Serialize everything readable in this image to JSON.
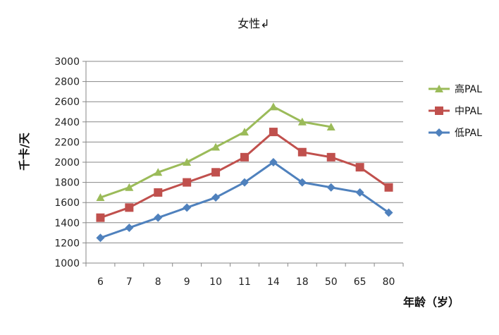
{
  "chart_data": {
    "type": "line",
    "title": "女性↲",
    "xlabel": "年龄（岁）",
    "ylabel": "千卡/天",
    "categories": [
      "6",
      "7",
      "8",
      "9",
      "10",
      "11",
      "14",
      "18",
      "50",
      "65",
      "80"
    ],
    "ylim": [
      1000,
      3000
    ],
    "yticks": [
      1000,
      1200,
      1400,
      1600,
      1800,
      2000,
      2200,
      2400,
      2600,
      2800,
      3000
    ],
    "grid": true,
    "legend_position": "right",
    "series": [
      {
        "name": "高PAL",
        "color": "#9BBB59",
        "marker": "triangle",
        "values": [
          1650,
          1750,
          1900,
          2000,
          2150,
          2300,
          2550,
          2400,
          2350,
          null,
          null
        ]
      },
      {
        "name": "中PAL",
        "color": "#C0504D",
        "marker": "square",
        "values": [
          1450,
          1550,
          1700,
          1800,
          1900,
          2050,
          2300,
          2100,
          2050,
          1950,
          1750
        ]
      },
      {
        "name": "低PAL",
        "color": "#4F81BD",
        "marker": "diamond",
        "values": [
          1250,
          1350,
          1450,
          1550,
          1650,
          1800,
          2000,
          1800,
          1750,
          1700,
          1500
        ]
      }
    ]
  }
}
